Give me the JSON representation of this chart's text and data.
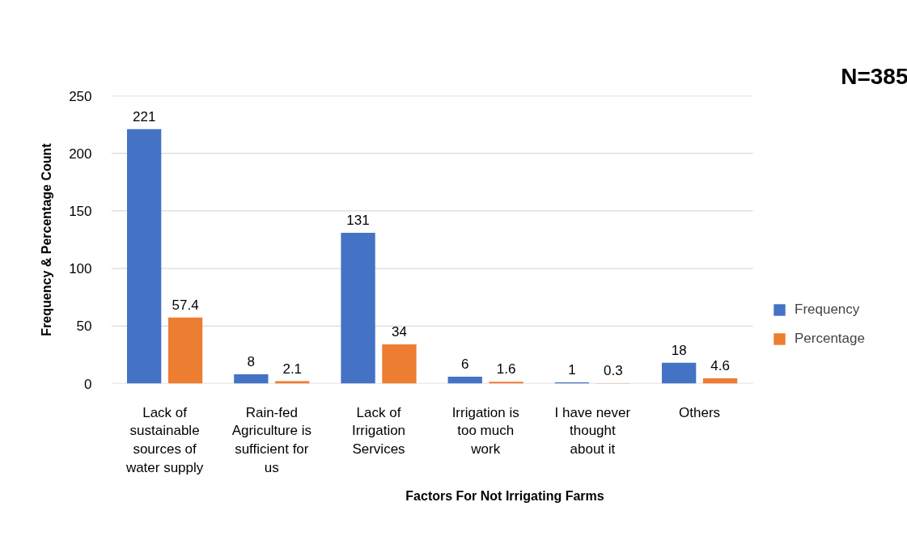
{
  "chart_data": {
    "type": "bar",
    "xlabel": "Factors For Not Irrigating Farms",
    "ylabel": "Frequency & Percentage Count",
    "categories": [
      "Lack of\nsustainable\nsources of\nwater supply",
      "Rain-fed\nAgriculture is\nsufficient for\nus",
      "Lack of\nIrrigation\nServices",
      "Irrigation is\ntoo much\nwork",
      "I have never\nthought\nabout it",
      "Others"
    ],
    "series": [
      {
        "name": "Frequency",
        "color": "#4472c4",
        "values": [
          221,
          8,
          131,
          6,
          1,
          18
        ]
      },
      {
        "name": "Percentage",
        "color": "#ed7d31",
        "values": [
          57.4,
          2.1,
          34,
          1.6,
          0.3,
          4.6
        ]
      }
    ],
    "ylim": [
      0,
      250
    ],
    "yticks": [
      0,
      50,
      100,
      150,
      200,
      250
    ],
    "grid": "y",
    "legend": "right",
    "data_labels": true,
    "annotations": [
      "N=385"
    ]
  }
}
